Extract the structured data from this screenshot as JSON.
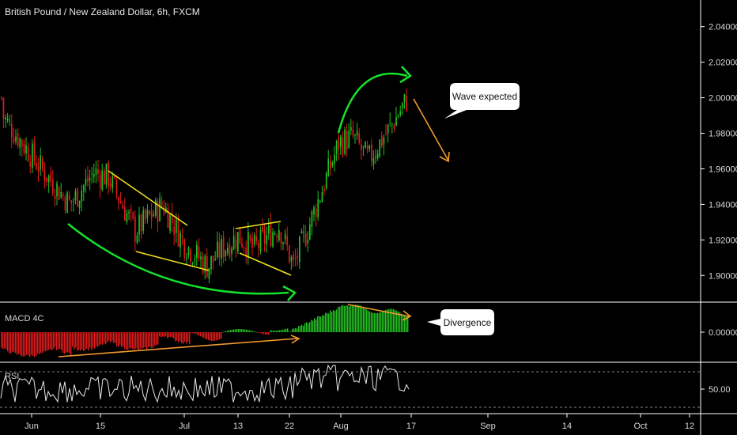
{
  "chart_data": {
    "type": "candlestick",
    "title": "British Pound / New Zealand Dollar, 6h, FXCM",
    "x_ticks": [
      "Jun",
      "15",
      "Jul",
      "13",
      "22",
      "Aug",
      "17",
      "Sep",
      "14",
      "Oct",
      "12"
    ],
    "price_axis": {
      "ticks": [
        "2.04000",
        "2.02000",
        "2.00000",
        "1.98000",
        "1.96000",
        "1.94000",
        "1.92000",
        "1.90000"
      ],
      "ylim": [
        1.885,
        2.055
      ]
    },
    "price_series": {
      "approx_close_path": [
        [
          "Jun",
          1.99
        ],
        [
          "Jun",
          1.962
        ],
        [
          "Jun",
          1.94
        ],
        [
          "15",
          1.958
        ],
        [
          "15",
          1.955
        ],
        [
          "15",
          1.925
        ],
        [
          "15",
          1.94
        ],
        [
          "Jul",
          1.918
        ],
        [
          "Jul",
          1.905
        ],
        [
          "Jul",
          1.915
        ],
        [
          "13",
          1.922
        ],
        [
          "13",
          1.915
        ],
        [
          "22",
          1.928
        ],
        [
          "22",
          1.905
        ],
        [
          "22",
          1.928
        ],
        [
          "Aug",
          1.975
        ],
        [
          "Aug",
          1.978
        ],
        [
          "Aug",
          1.965
        ],
        [
          "Aug",
          1.985
        ],
        [
          "17",
          2.0
        ]
      ]
    },
    "macd": {
      "name": "MACD 4C",
      "ticks": [
        "0.00000"
      ]
    },
    "rsi": {
      "name": "RSI",
      "ticks": [
        "50.00"
      ]
    },
    "annotations": [
      {
        "kind": "callout",
        "text": "Wave expected"
      },
      {
        "kind": "callout",
        "text": "Divergence"
      }
    ],
    "colors": {
      "up": "#22c022",
      "down": "#e01b1b",
      "trendline": "#f5e31b",
      "arc": "#14e22a",
      "divergence": "#f29a2e",
      "rsi_line": "#e8e8e8",
      "grid": "#ffffff",
      "bg": "#000000"
    }
  }
}
